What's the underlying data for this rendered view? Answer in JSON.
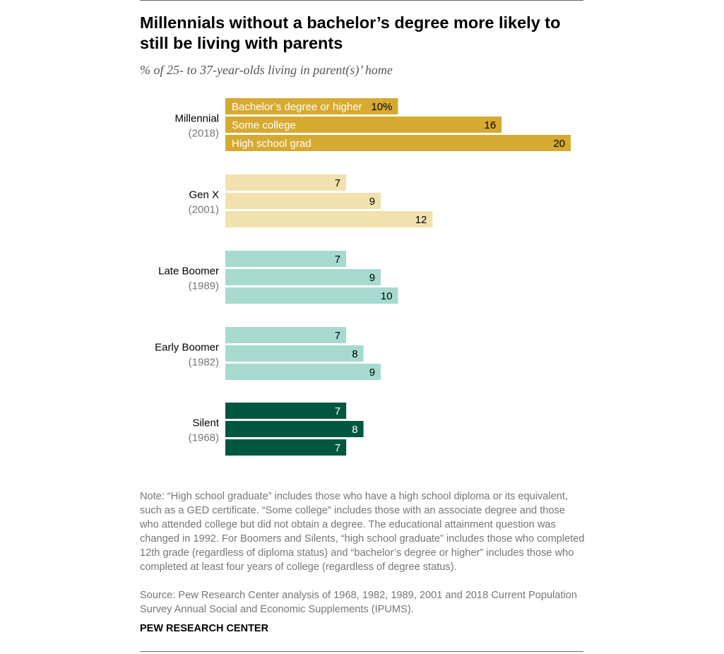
{
  "title": "Millennials without a bachelor’s degree more likely to still be living with parents",
  "subtitle": "% of 25- to 37-year-olds living in parent(s)’ home",
  "note": "Note: “High school graduate” includes those who have a high school diploma or its equivalent, such as a GED certificate. “Some college” includes those with an associate degree and those who attended college but did not obtain a degree. The educational attainment question was changed in 1992. For Boomers and Silents, “high school graduate” includes those who completed 12th grade (regardless of diploma status) and “bachelor’s degree or higher” includes those who completed at least four years of college (regardless of degree status).",
  "source": "Source: Pew Research Center analysis of 1968, 1982, 1989, 2001 and 2018 Current Population Survey Annual Social and Economic Supplements (IPUMS).",
  "brand": "PEW RESEARCH CENTER",
  "chart_data": {
    "type": "bar",
    "orientation": "horizontal",
    "xlim": [
      0,
      20
    ],
    "grid": false,
    "series_labels": [
      "Bachelor’s degree or higher",
      "Some college",
      "High school grad"
    ],
    "groups": [
      {
        "name": "Millennial",
        "year": "(2018)",
        "values": [
          10,
          16,
          20
        ],
        "value_labels": [
          "10%",
          "16",
          "20"
        ],
        "color": "#d6aa31",
        "label_color": "#ffffff",
        "value_color": "#000000"
      },
      {
        "name": "Gen X",
        "year": "(2001)",
        "values": [
          7,
          9,
          12
        ],
        "value_labels": [
          "7",
          "9",
          "12"
        ],
        "color": "#f1e1ad",
        "label_color": "#000000",
        "value_color": "#000000"
      },
      {
        "name": "Late Boomer",
        "year": "(1989)",
        "values": [
          7,
          9,
          10
        ],
        "value_labels": [
          "7",
          "9",
          "10"
        ],
        "color": "#a6dacf",
        "label_color": "#000000",
        "value_color": "#000000"
      },
      {
        "name": "Early Boomer",
        "year": "(1982)",
        "values": [
          7,
          8,
          9
        ],
        "value_labels": [
          "7",
          "8",
          "9"
        ],
        "color": "#a6dacf",
        "label_color": "#000000",
        "value_color": "#000000"
      },
      {
        "name": "Silent",
        "year": "(1968)",
        "values": [
          7,
          8,
          7
        ],
        "value_labels": [
          "7",
          "8",
          "7"
        ],
        "color": "#00573f",
        "label_color": "#ffffff",
        "value_color": "#ffffff"
      }
    ]
  }
}
